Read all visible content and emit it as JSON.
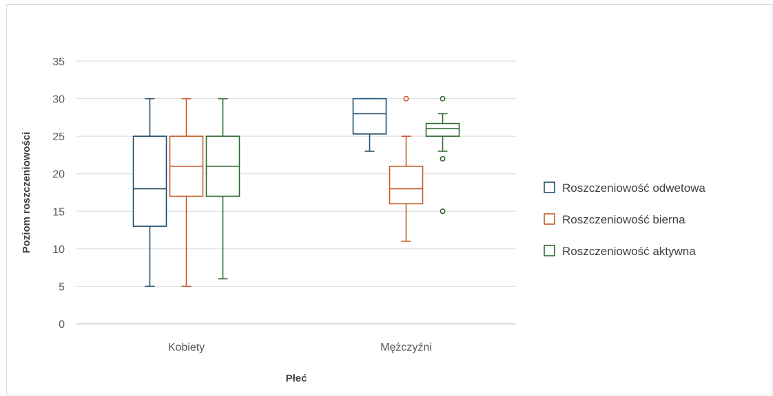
{
  "chart_data": {
    "type": "boxplot",
    "title": "",
    "xlabel": "Płeć",
    "ylabel": "Poziom roszczeniowości",
    "ylim": [
      0,
      35
    ],
    "yticks": [
      0,
      5,
      10,
      15,
      20,
      25,
      30,
      35
    ],
    "grid": true,
    "legend_position": "right",
    "categories": [
      "Kobiety",
      "Mężczyźni"
    ],
    "series": [
      {
        "name": "Roszczeniowość odwetowa",
        "color": "#1f4e6b",
        "boxes": [
          {
            "min": 5,
            "q1": 13,
            "median": 18,
            "q3": 25,
            "max": 30,
            "outliers": []
          },
          {
            "min": 23,
            "q1": 25.3,
            "median": 28,
            "q3": 30,
            "max": 30,
            "outliers": []
          }
        ]
      },
      {
        "name": "Roszczeniowość bierna",
        "color": "#c55a28",
        "boxes": [
          {
            "min": 5,
            "q1": 17,
            "median": 21,
            "q3": 25,
            "max": 30,
            "outliers": []
          },
          {
            "min": 11,
            "q1": 16,
            "median": 18,
            "q3": 21,
            "max": 25,
            "outliers": [
              30
            ]
          }
        ]
      },
      {
        "name": "Roszczeniowość aktywna",
        "color": "#2e6b2e",
        "boxes": [
          {
            "min": 6,
            "q1": 17,
            "median": 21,
            "q3": 25,
            "max": 30,
            "outliers": []
          },
          {
            "min": 23,
            "q1": 25,
            "median": 26,
            "q3": 26.7,
            "max": 28,
            "outliers": [
              30,
              22,
              15
            ]
          }
        ]
      }
    ]
  }
}
